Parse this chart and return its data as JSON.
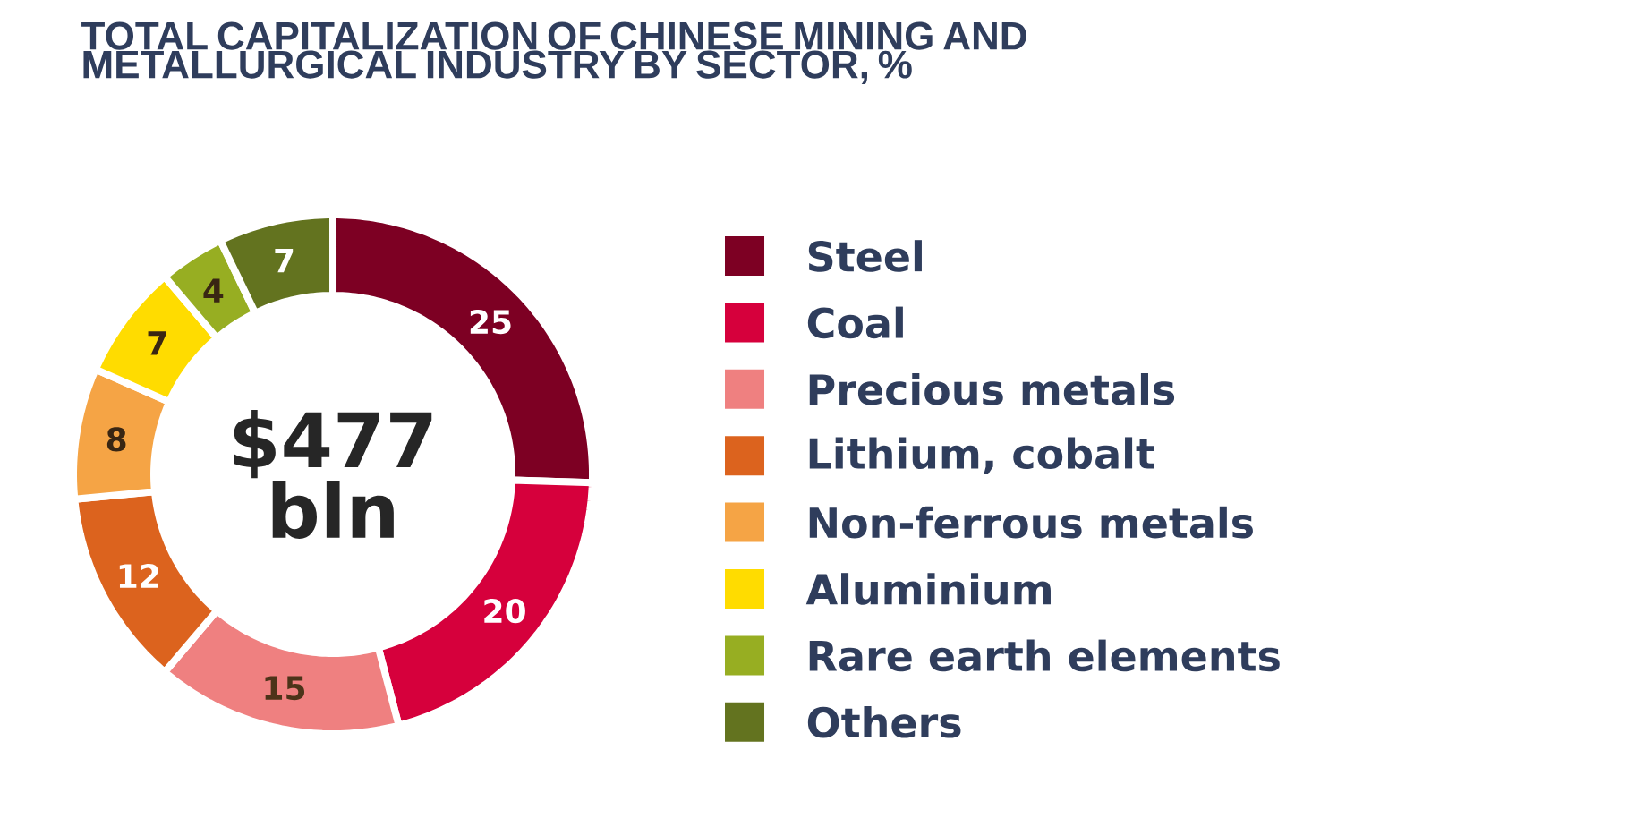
{
  "chart_data": {
    "type": "donut",
    "title": "TOTAL CAPITALIZATION OF CHINESE MINING AND METALLURGICAL INDUSTRY BY SECTOR, %",
    "categories": [
      "Steel",
      "Coal",
      "Precious metals",
      "Lithium, cobalt",
      "Non-ferrous metals",
      "Aluminium",
      "Rare earth elements",
      "Others"
    ],
    "values": [
      25,
      20,
      15,
      12,
      8,
      7,
      4,
      7
    ],
    "colors": [
      "#7d0023",
      "#d6003c",
      "#ef8080",
      "#dc631e",
      "#f5a445",
      "#ffdc00",
      "#97ae22",
      "#63731f"
    ],
    "data_labels": true,
    "legend": "right",
    "annotations": [
      "$477 bln"
    ]
  }
}
